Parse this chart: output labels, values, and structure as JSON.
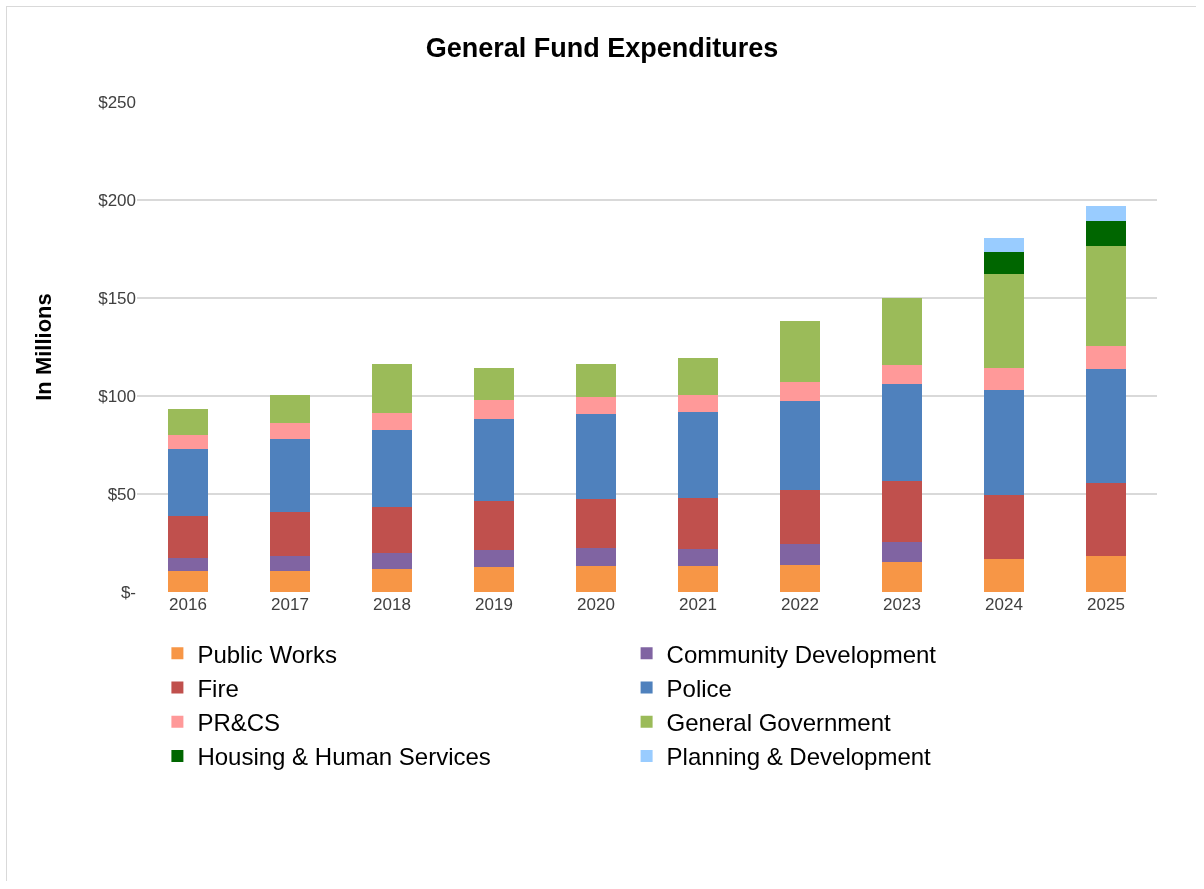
{
  "chart_data": {
    "type": "bar",
    "title": "General Fund Expenditures",
    "ylabel": "In Millions",
    "stacked": true,
    "categories": [
      "2016",
      "2017",
      "2018",
      "2019",
      "2020",
      "2021",
      "2022",
      "2023",
      "2024",
      "2025"
    ],
    "series": [
      {
        "name": "Public Works",
        "color": "#f79646",
        "values": [
          10.5,
          10.8,
          11.8,
          12.9,
          13.2,
          13.2,
          14.0,
          15.1,
          16.9,
          18.6
        ]
      },
      {
        "name": "Community Development",
        "color": "#8064a2",
        "values": [
          6.8,
          7.8,
          8.2,
          8.6,
          9.5,
          8.8,
          10.5,
          10.3,
          null,
          null
        ]
      },
      {
        "name": "Fire",
        "color": "#c0504d",
        "values": [
          21.6,
          22.3,
          23.3,
          24.7,
          24.7,
          25.9,
          27.6,
          31.1,
          32.7,
          37.2
        ]
      },
      {
        "name": "Police",
        "color": "#4f81bd",
        "values": [
          33.9,
          37.3,
          39.3,
          42.3,
          43.6,
          44.0,
          45.2,
          49.8,
          53.6,
          57.9
        ]
      },
      {
        "name": "PR&CS",
        "color": "#ff9999",
        "values": [
          7.2,
          8.1,
          8.8,
          9.3,
          8.5,
          8.6,
          9.8,
          9.6,
          11.2,
          11.9
        ]
      },
      {
        "name": "General Government",
        "color": "#9bbb59",
        "values": [
          13.4,
          14.4,
          24.8,
          16.6,
          16.6,
          18.8,
          31.1,
          34.0,
          47.7,
          50.7
        ]
      },
      {
        "name": "Housing & Human Services",
        "color": "#006600",
        "values": [
          null,
          null,
          null,
          null,
          null,
          null,
          null,
          null,
          11.5,
          13.2
        ]
      },
      {
        "name": "Planning & Development",
        "color": "#99ccff",
        "values": [
          null,
          null,
          null,
          null,
          null,
          null,
          null,
          null,
          7.1,
          7.3
        ]
      }
    ],
    "ylim": [
      0,
      250
    ],
    "yticks": [
      {
        "value": 0,
        "label": "$-"
      },
      {
        "value": 50,
        "label": "$50"
      },
      {
        "value": 100,
        "label": "$100"
      },
      {
        "value": 150,
        "label": "$150"
      },
      {
        "value": 200,
        "label": "$200"
      },
      {
        "value": 250,
        "label": "$250"
      }
    ],
    "grid": "y",
    "legend": "bottom"
  }
}
